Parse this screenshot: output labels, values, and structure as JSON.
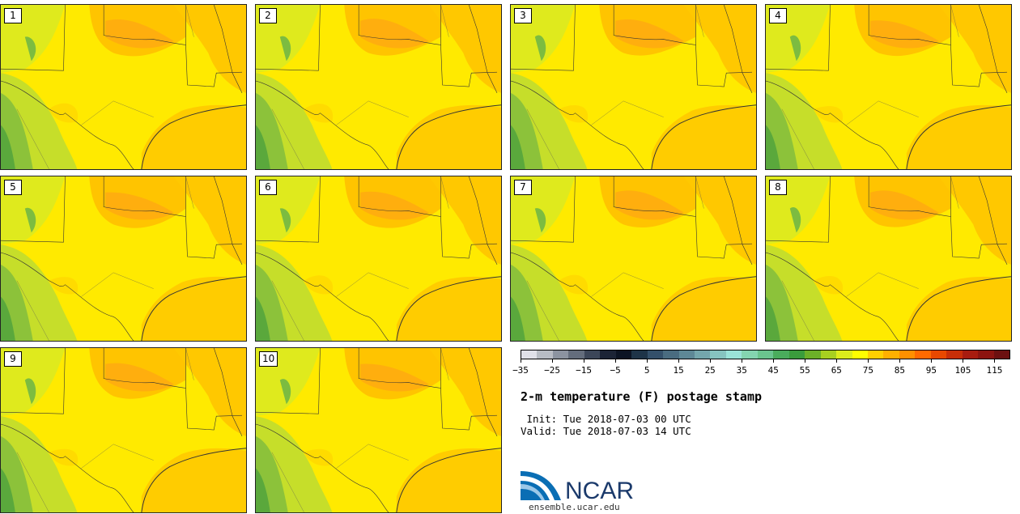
{
  "panels": [
    "1",
    "2",
    "3",
    "4",
    "5",
    "6",
    "7",
    "8",
    "9",
    "10"
  ],
  "colorbar": {
    "colors": [
      "#e0e0e8",
      "#b8bcc4",
      "#8c93a0",
      "#646d7c",
      "#3c4658",
      "#1c2436",
      "#0c1424",
      "#1e3448",
      "#34506a",
      "#4a6c80",
      "#5e8896",
      "#74a6ac",
      "#86c4c0",
      "#9ae2d8",
      "#84d4b0",
      "#6ac48e",
      "#4aac5c",
      "#3a9c3c",
      "#6cb028",
      "#a8d020",
      "#dcec1c",
      "#fefe00",
      "#ffd000",
      "#ffb000",
      "#ff9000",
      "#ff6a00",
      "#e84800",
      "#c82e08",
      "#a81c10",
      "#8c1410",
      "#6c1010"
    ],
    "tick_labels": [
      "−35",
      "−25",
      "−15",
      "−5",
      "5",
      "15",
      "25",
      "35",
      "45",
      "55",
      "65",
      "75",
      "85",
      "95",
      "105",
      "115"
    ]
  },
  "title": "2-m temperature (F) postage stamp",
  "init_line": " Init: Tue 2018-07-03 00 UTC",
  "valid_line": "Valid: Tue 2018-07-03 14 UTC",
  "logo_text": "NCAR",
  "url": "ensemble.ucar.edu"
}
